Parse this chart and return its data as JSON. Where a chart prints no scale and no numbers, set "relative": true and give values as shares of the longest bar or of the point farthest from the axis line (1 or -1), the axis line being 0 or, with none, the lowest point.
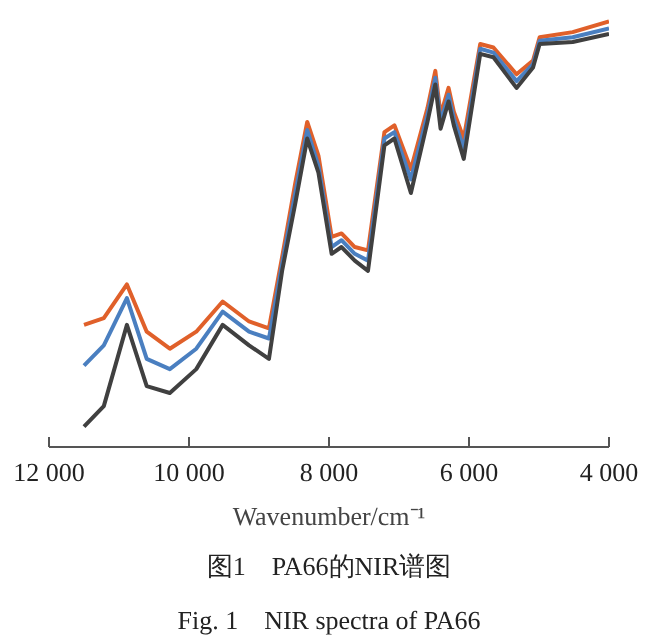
{
  "chart_data": {
    "type": "line",
    "title": "图1　PA66的NIR谱图",
    "subtitle": "Fig. 1　NIR spectra of PA66",
    "xlabel": "Wavenumber/cm⁻¹",
    "relative": true,
    "xlim": [
      12000,
      4000
    ],
    "xticks": [
      {
        "value": 12000,
        "label": "12 000"
      },
      {
        "value": 10000,
        "label": "10 000"
      },
      {
        "value": 8000,
        "label": "8 000"
      },
      {
        "value": 6000,
        "label": "6 000"
      },
      {
        "value": 4000,
        "label": "4 000"
      }
    ],
    "x": [
      11500,
      11217,
      10887,
      10604,
      10274,
      9896,
      9519,
      9142,
      8858,
      8670,
      8481,
      8311,
      8151,
      7962,
      7821,
      7632,
      7443,
      7208,
      7066,
      6830,
      6594,
      6481,
      6406,
      6292,
      6217,
      6075,
      5840,
      5651,
      5321,
      5085,
      4991,
      4519,
      4000
    ],
    "series": [
      {
        "color": "#e0602a",
        "values": [
          0.287,
          0.303,
          0.382,
          0.271,
          0.231,
          0.271,
          0.342,
          0.295,
          0.279,
          0.446,
          0.621,
          0.764,
          0.685,
          0.494,
          0.502,
          0.47,
          0.462,
          0.74,
          0.756,
          0.653,
          0.796,
          0.884,
          0.78,
          0.844,
          0.788,
          0.725,
          0.947,
          0.939,
          0.876,
          0.908,
          0.963,
          0.975,
          1.0
        ]
      },
      {
        "color": "#4a7fc0",
        "values": [
          0.191,
          0.239,
          0.35,
          0.207,
          0.183,
          0.231,
          0.318,
          0.271,
          0.255,
          0.43,
          0.597,
          0.745,
          0.661,
          0.47,
          0.486,
          0.454,
          0.438,
          0.725,
          0.74,
          0.629,
          0.78,
          0.868,
          0.764,
          0.828,
          0.772,
          0.701,
          0.936,
          0.927,
          0.86,
          0.9,
          0.955,
          0.963,
          0.984
        ]
      },
      {
        "color": "#404040",
        "values": [
          0.048,
          0.096,
          0.287,
          0.143,
          0.127,
          0.183,
          0.287,
          0.239,
          0.207,
          0.414,
          0.573,
          0.725,
          0.645,
          0.454,
          0.47,
          0.438,
          0.414,
          0.709,
          0.725,
          0.597,
          0.764,
          0.852,
          0.748,
          0.812,
          0.756,
          0.677,
          0.924,
          0.916,
          0.844,
          0.892,
          0.947,
          0.952,
          0.971
        ]
      }
    ]
  }
}
